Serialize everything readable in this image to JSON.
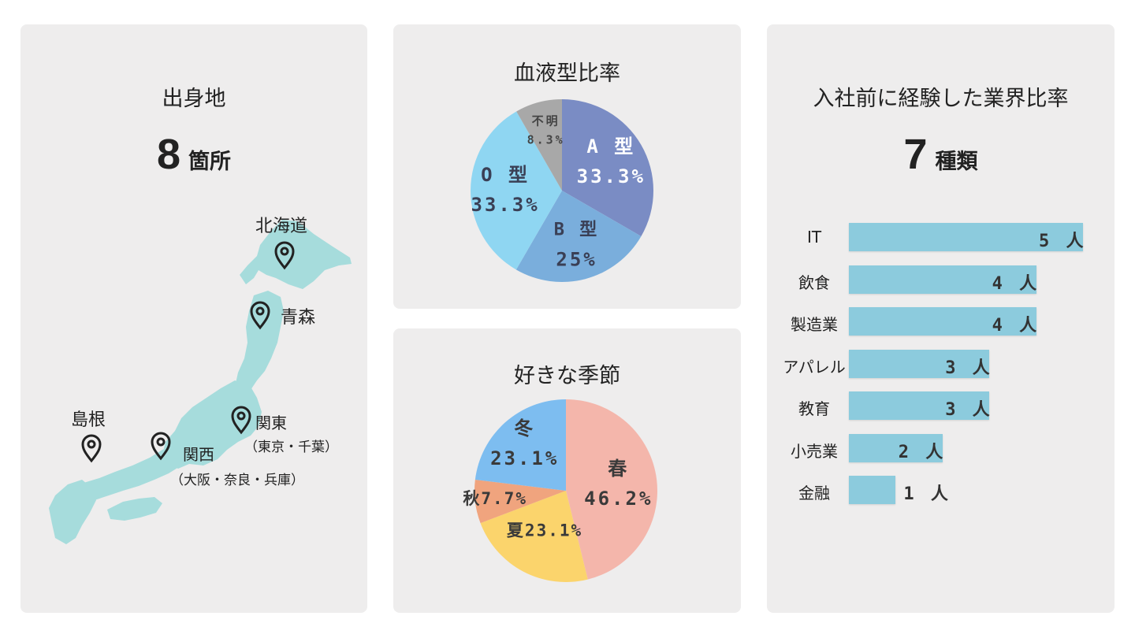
{
  "origin": {
    "title": "出身地",
    "count": "8",
    "unit": "箇所",
    "places": {
      "hokkaido": "北海道",
      "aomori": "青森",
      "shimane": "島根",
      "kanto": "関東",
      "kanto_detail": "（東京・千葉）",
      "kansai": "関西",
      "kansai_detail": "（大阪・奈良・兵庫）"
    },
    "map_color": "#a6dcdc"
  },
  "blood": {
    "title": "血液型比率",
    "chart_data": {
      "type": "pie",
      "title": "血液型比率",
      "slices": [
        {
          "label": "A 型",
          "value": 33.3,
          "display": "33.3%",
          "color": "#7a8cc4"
        },
        {
          "label": "B 型",
          "value": 25,
          "display": "25%",
          "color": "#7aaedc"
        },
        {
          "label": "O 型",
          "value": 33.3,
          "display": "33.3%",
          "color": "#8fd6f2"
        },
        {
          "label": "不明",
          "value": 8.3,
          "display": "8.3%",
          "color": "#a8a8a8"
        }
      ]
    }
  },
  "season": {
    "title": "好きな季節",
    "chart_data": {
      "type": "pie",
      "title": "好きな季節",
      "slices": [
        {
          "label": "春",
          "value": 46.2,
          "display": "46.2%",
          "color": "#f4b6ab"
        },
        {
          "label": "夏",
          "value": 23.1,
          "display": "23.1%",
          "color": "#fbd46c"
        },
        {
          "label": "秋",
          "value": 7.7,
          "display": "7.7%",
          "color": "#f0a47e"
        },
        {
          "label": "冬",
          "value": 23.1,
          "display": "23.1%",
          "color": "#7dbdf0"
        }
      ]
    }
  },
  "industry": {
    "title": "入社前に経験した業界比率",
    "count": "7",
    "unit": "種類",
    "chart_data": {
      "type": "bar",
      "orientation": "horizontal",
      "categories": [
        "IT",
        "飲食",
        "製造業",
        "アパレル",
        "教育",
        "小売業",
        "金融"
      ],
      "values": [
        5,
        4,
        4,
        3,
        3,
        2,
        1
      ],
      "value_labels": [
        "5 人",
        "4 人",
        "4 人",
        "3 人",
        "3 人",
        "2 人",
        "1 人"
      ],
      "xlim": [
        0,
        5
      ],
      "bar_color": "#8ccbdd"
    }
  }
}
